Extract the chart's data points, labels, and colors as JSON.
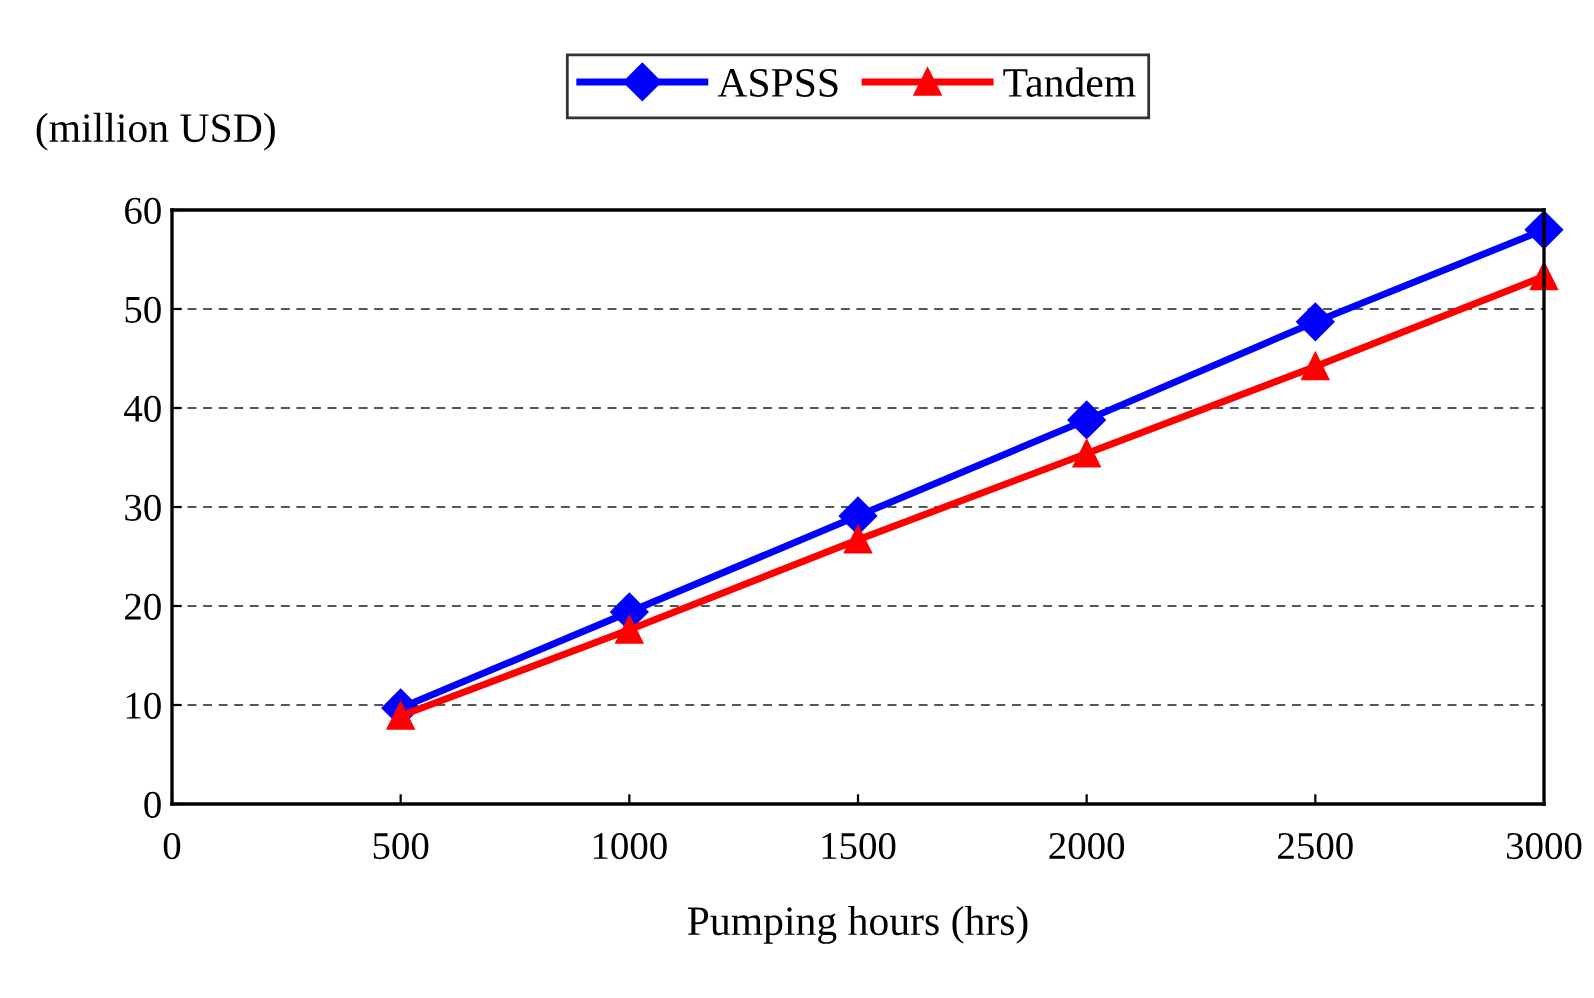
{
  "chart_data": {
    "type": "line",
    "xlabel": "Pumping hours (hrs)",
    "ylabel": "(million USD)",
    "x": [
      500,
      1000,
      1500,
      2000,
      2500,
      3000
    ],
    "series": [
      {
        "name": "ASPSS",
        "color": "#0000ff",
        "marker": "diamond",
        "values": [
          9.7,
          19.4,
          29.1,
          38.8,
          48.7,
          58.0
        ]
      },
      {
        "name": "Tandem",
        "color": "#ff0000",
        "marker": "triangle",
        "values": [
          8.9,
          17.6,
          26.7,
          35.4,
          44.2,
          53.3
        ]
      }
    ],
    "xlim": [
      0,
      3000
    ],
    "xticks": [
      0,
      500,
      1000,
      1500,
      2000,
      2500,
      3000
    ],
    "ylim": [
      0,
      60
    ],
    "yticks": [
      0,
      10,
      20,
      30,
      40,
      50,
      60
    ],
    "grid": "y",
    "legend": "top",
    "line_style": "solid"
  }
}
